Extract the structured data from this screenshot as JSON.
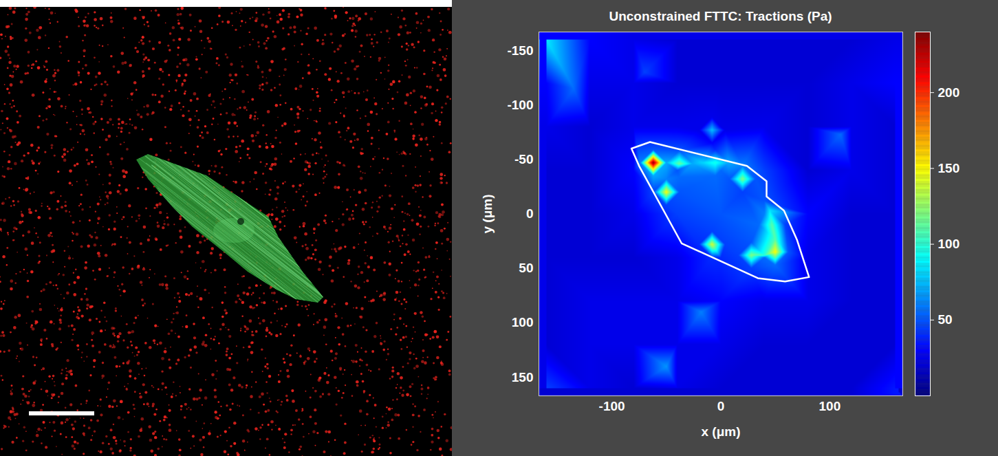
{
  "chart_data": {
    "type": "heatmap",
    "title": "Unconstrained FTTC: Tractions (Pa)",
    "xlabel": "x (μm)",
    "ylabel": "y (μm)",
    "xlim": [
      -167,
      167
    ],
    "ylim": [
      167,
      -167
    ],
    "xticks": [
      -100,
      0,
      100
    ],
    "yticks": [
      -150,
      -100,
      -50,
      0,
      50,
      100,
      150
    ],
    "color": "jet",
    "colorbar": {
      "range": [
        0,
        240
      ],
      "ticks": [
        50,
        100,
        150,
        200
      ]
    },
    "cells": [
      [
        -160,
        -160,
        85
      ],
      [
        -120,
        -160,
        30
      ],
      [
        -80,
        -160,
        25
      ],
      [
        -40,
        -160,
        20
      ],
      [
        0,
        -160,
        20
      ],
      [
        40,
        -160,
        20
      ],
      [
        80,
        -160,
        20
      ],
      [
        120,
        -160,
        20
      ],
      [
        160,
        -160,
        25
      ],
      [
        -160,
        -120,
        30
      ],
      [
        -120,
        -120,
        25
      ],
      [
        -80,
        -120,
        25
      ],
      [
        -40,
        -120,
        20
      ],
      [
        0,
        -120,
        20
      ],
      [
        40,
        -120,
        20
      ],
      [
        80,
        -120,
        20
      ],
      [
        120,
        -120,
        25
      ],
      [
        160,
        -120,
        30
      ],
      [
        -160,
        -80,
        25
      ],
      [
        -120,
        -80,
        20
      ],
      [
        -80,
        -80,
        25
      ],
      [
        -40,
        -80,
        25
      ],
      [
        0,
        -80,
        25
      ],
      [
        40,
        -80,
        25
      ],
      [
        80,
        -80,
        20
      ],
      [
        120,
        -80,
        25
      ],
      [
        160,
        -80,
        20
      ],
      [
        -160,
        -40,
        20
      ],
      [
        -120,
        -40,
        20
      ],
      [
        -80,
        -40,
        30
      ],
      [
        -40,
        -40,
        50
      ],
      [
        0,
        -40,
        55
      ],
      [
        40,
        -40,
        45
      ],
      [
        80,
        -40,
        20
      ],
      [
        120,
        -40,
        25
      ],
      [
        160,
        -40,
        20
      ],
      [
        -160,
        0,
        20
      ],
      [
        -120,
        0,
        20
      ],
      [
        -80,
        0,
        25
      ],
      [
        -40,
        0,
        45
      ],
      [
        0,
        0,
        50
      ],
      [
        40,
        0,
        60
      ],
      [
        80,
        0,
        30
      ],
      [
        120,
        0,
        20
      ],
      [
        160,
        0,
        20
      ],
      [
        -160,
        40,
        20
      ],
      [
        -120,
        40,
        20
      ],
      [
        -80,
        40,
        20
      ],
      [
        -40,
        40,
        25
      ],
      [
        0,
        40,
        40
      ],
      [
        40,
        40,
        55
      ],
      [
        80,
        40,
        25
      ],
      [
        120,
        40,
        20
      ],
      [
        160,
        40,
        20
      ],
      [
        -160,
        80,
        20
      ],
      [
        -120,
        80,
        25
      ],
      [
        -80,
        80,
        25
      ],
      [
        -40,
        80,
        25
      ],
      [
        0,
        80,
        30
      ],
      [
        40,
        80,
        25
      ],
      [
        80,
        80,
        25
      ],
      [
        120,
        80,
        20
      ],
      [
        160,
        80,
        20
      ],
      [
        -160,
        120,
        20
      ],
      [
        -120,
        120,
        25
      ],
      [
        -80,
        120,
        25
      ],
      [
        -40,
        120,
        25
      ],
      [
        0,
        120,
        25
      ],
      [
        40,
        120,
        20
      ],
      [
        80,
        120,
        20
      ],
      [
        120,
        120,
        20
      ],
      [
        160,
        120,
        20
      ],
      [
        -160,
        160,
        45
      ],
      [
        -120,
        160,
        25
      ],
      [
        -80,
        160,
        20
      ],
      [
        -40,
        160,
        25
      ],
      [
        0,
        160,
        20
      ],
      [
        40,
        160,
        20
      ],
      [
        80,
        160,
        20
      ],
      [
        120,
        160,
        20
      ],
      [
        160,
        160,
        35
      ],
      [
        -62,
        -47,
        240
      ],
      [
        -74,
        -47,
        60
      ],
      [
        -50,
        -47,
        70
      ],
      [
        -62,
        -59,
        50
      ],
      [
        -62,
        -35,
        70
      ],
      [
        -38,
        -46,
        115
      ],
      [
        -38,
        -58,
        50
      ],
      [
        -26,
        -46,
        70
      ],
      [
        -38,
        -34,
        55
      ],
      [
        -50,
        -20,
        150
      ],
      [
        -62,
        -20,
        45
      ],
      [
        -38,
        -20,
        50
      ],
      [
        -50,
        -8,
        45
      ],
      [
        -50,
        -32,
        60
      ],
      [
        -5,
        -47,
        95
      ],
      [
        -17,
        -47,
        80
      ],
      [
        7,
        -47,
        70
      ],
      [
        -5,
        -59,
        40
      ],
      [
        -5,
        -35,
        55
      ],
      [
        20,
        -32,
        120
      ],
      [
        8,
        -32,
        50
      ],
      [
        32,
        -32,
        50
      ],
      [
        20,
        -44,
        60
      ],
      [
        20,
        -20,
        45
      ],
      [
        -8,
        28,
        140
      ],
      [
        -20,
        28,
        40
      ],
      [
        4,
        28,
        45
      ],
      [
        -8,
        16,
        45
      ],
      [
        -8,
        40,
        40
      ],
      [
        28,
        38,
        120
      ],
      [
        16,
        38,
        45
      ],
      [
        28,
        50,
        45
      ],
      [
        28,
        26,
        50
      ],
      [
        40,
        38,
        100
      ],
      [
        50,
        35,
        150
      ],
      [
        62,
        35,
        50
      ],
      [
        50,
        47,
        55
      ],
      [
        50,
        23,
        110
      ],
      [
        47,
        10,
        110
      ],
      [
        35,
        10,
        55
      ],
      [
        59,
        10,
        45
      ],
      [
        45,
        -3,
        85
      ],
      [
        40,
        -12,
        50
      ],
      [
        -8,
        -77,
        75
      ],
      [
        -20,
        -77,
        25
      ],
      [
        4,
        -77,
        25
      ],
      [
        -8,
        -89,
        25
      ],
      [
        -8,
        -65,
        30
      ],
      [
        -135,
        -115,
        55
      ],
      [
        110,
        -73,
        55
      ],
      [
        -18,
        90,
        60
      ],
      [
        -50,
        140,
        65
      ],
      [
        -70,
        -130,
        45
      ]
    ],
    "outline": {
      "x": [
        -82,
        -65,
        24,
        42,
        42,
        58,
        70,
        81,
        59,
        34,
        -36,
        -75
      ],
      "y": [
        -60,
        -66,
        -44,
        -30,
        -16,
        -3,
        24,
        58,
        62,
        59,
        27,
        -44
      ]
    }
  }
}
